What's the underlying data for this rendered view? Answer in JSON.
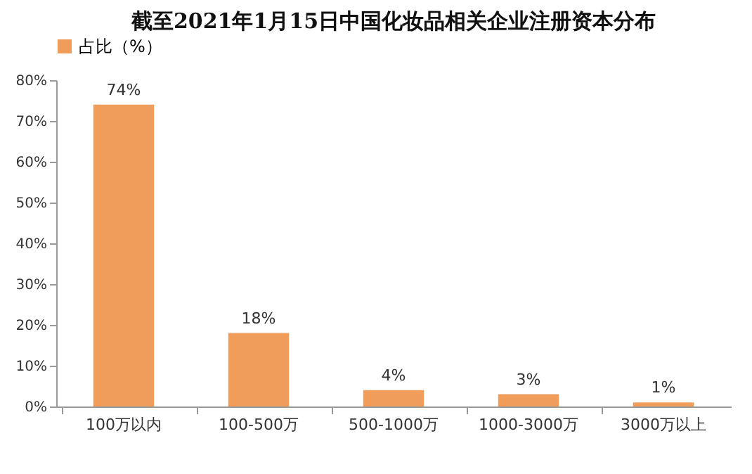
{
  "chart_data": {
    "type": "bar",
    "title": "截至2021年1月15日中国化妆品相关企业注册资本分布",
    "categories": [
      "100万以内",
      "100-500万",
      "500-1000万",
      "1000-3000万",
      "3000万以上"
    ],
    "series": [
      {
        "name": "占比（%）",
        "color": "#f09c5b",
        "values": [
          74,
          18,
          4,
          3,
          1
        ],
        "value_labels": [
          "74%",
          "18%",
          "4%",
          "3%",
          "1%"
        ]
      }
    ],
    "ylim": [
      0,
      80
    ],
    "yticks": [
      {
        "value": 0,
        "label": "0%"
      },
      {
        "value": 10,
        "label": "10%"
      },
      {
        "value": 20,
        "label": "20%"
      },
      {
        "value": 30,
        "label": "30%"
      },
      {
        "value": 40,
        "label": "40%"
      },
      {
        "value": 50,
        "label": "50%"
      },
      {
        "value": 60,
        "label": "60%"
      },
      {
        "value": 70,
        "label": "70%"
      },
      {
        "value": 80,
        "label": "80%"
      }
    ],
    "legend": "top",
    "grid": false
  }
}
